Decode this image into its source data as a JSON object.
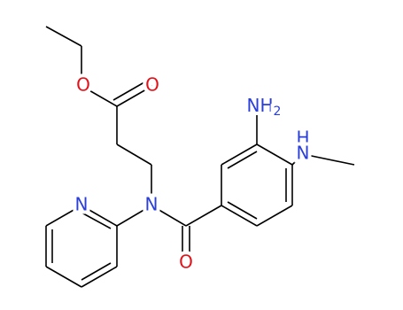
{
  "atoms": [
    {
      "label": "O"
    },
    {
      "label": "O"
    },
    {
      "label": "N"
    },
    {
      "label": "N"
    },
    {
      "label": "O"
    },
    {
      "label": "NH",
      "subscript": "2"
    },
    {
      "label": "H"
    },
    {
      "label": "N"
    }
  ]
}
